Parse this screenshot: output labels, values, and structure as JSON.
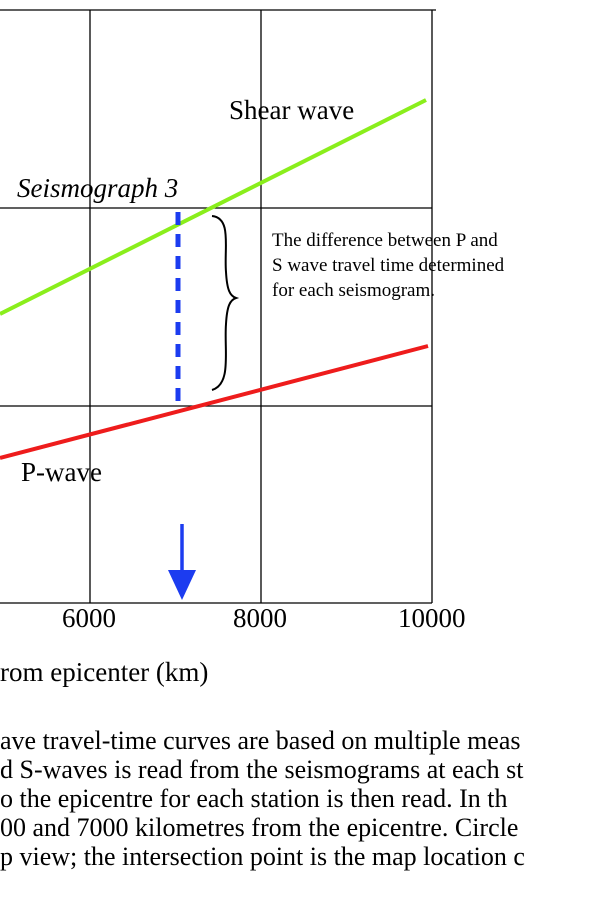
{
  "figure": {
    "shear_label": "Shear wave",
    "p_label": "P-wave",
    "seismograph_label": "Seismograph 3",
    "note": "The difference between P and S wave travel time determined for each seismogram.",
    "x_ticks": [
      "6000",
      "8000",
      "10000"
    ],
    "x_axis_title": "rom epicenter (km)",
    "colors": {
      "shear_wave": "#8aee1c",
      "p_wave": "#ee1c1c",
      "marker": "#1c3cf0",
      "grid": "#000000"
    }
  },
  "caption": {
    "lines": [
      "ave travel-time curves are based on multiple meas",
      "d S-waves is read from the seismograms at each st",
      "o the epicentre for each station is then read.  In th",
      "00 and 7000 kilometres from the epicentre.  Circle",
      "p view; the intersection point is the map location c"
    ]
  }
}
